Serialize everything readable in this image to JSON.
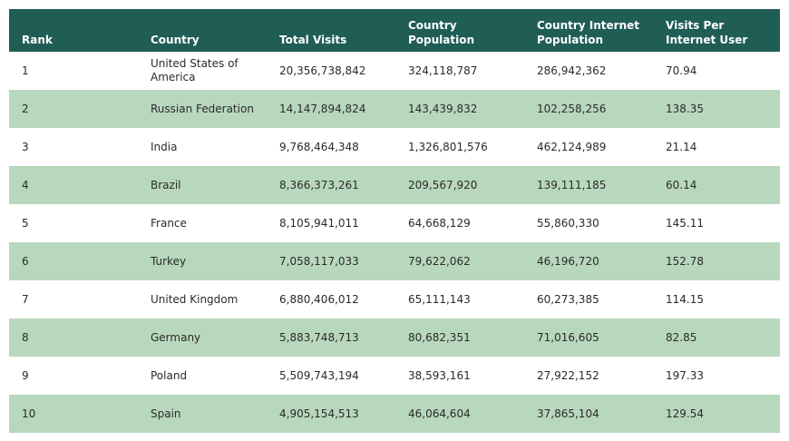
{
  "table": {
    "headers": {
      "rank": "Rank",
      "country": "Country",
      "total_visits": "Total Visits",
      "country_population": "Country Population",
      "internet_population": "Country Internet Population",
      "visits_per_user": "Visits Per Internet User"
    },
    "rows": [
      {
        "rank": "1",
        "country": "United States of America",
        "total_visits": "20,356,738,842",
        "country_population": "324,118,787",
        "internet_population": "286,942,362",
        "visits_per_user": "70.94"
      },
      {
        "rank": "2",
        "country": "Russian Federation",
        "total_visits": "14,147,894,824",
        "country_population": "143,439,832",
        "internet_population": "102,258,256",
        "visits_per_user": "138.35"
      },
      {
        "rank": "3",
        "country": "India",
        "total_visits": "9,768,464,348",
        "country_population": "1,326,801,576",
        "internet_population": "462,124,989",
        "visits_per_user": "21.14"
      },
      {
        "rank": "4",
        "country": "Brazil",
        "total_visits": "8,366,373,261",
        "country_population": "209,567,920",
        "internet_population": "139,111,185",
        "visits_per_user": "60.14"
      },
      {
        "rank": "5",
        "country": "France",
        "total_visits": "8,105,941,011",
        "country_population": "64,668,129",
        "internet_population": "55,860,330",
        "visits_per_user": "145.11"
      },
      {
        "rank": "6",
        "country": "Turkey",
        "total_visits": "7,058,117,033",
        "country_population": "79,622,062",
        "internet_population": "46,196,720",
        "visits_per_user": "152.78"
      },
      {
        "rank": "7",
        "country": "United Kingdom",
        "total_visits": "6,880,406,012",
        "country_population": "65,111,143",
        "internet_population": "60,273,385",
        "visits_per_user": "114.15"
      },
      {
        "rank": "8",
        "country": "Germany",
        "total_visits": "5,883,748,713",
        "country_population": "80,682,351",
        "internet_population": "71,016,605",
        "visits_per_user": "82.85"
      },
      {
        "rank": "9",
        "country": "Poland",
        "total_visits": "5,509,743,194",
        "country_population": "38,593,161",
        "internet_population": "27,922,152",
        "visits_per_user": "197.33"
      },
      {
        "rank": "10",
        "country": "Spain",
        "total_visits": "4,905,154,513",
        "country_population": "46,064,604",
        "internet_population": "37,865,104",
        "visits_per_user": "129.54"
      }
    ]
  },
  "colors": {
    "header_bg": "#1f5d55",
    "header_text": "#ffffff",
    "row_alt_bg": "#b8d8bd",
    "row_bg": "#ffffff"
  }
}
